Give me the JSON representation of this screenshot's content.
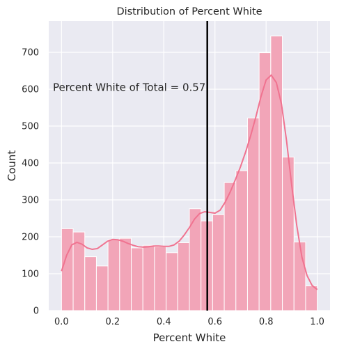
{
  "chart_data": {
    "type": "bar",
    "title": "Distribution of Percent White",
    "xlabel": "Percent White",
    "ylabel": "Count",
    "xlim": [
      -0.05,
      1.05
    ],
    "ylim": [
      0,
      785
    ],
    "xticks": [
      "0.0",
      "0.2",
      "0.4",
      "0.6",
      "0.8",
      "1.0"
    ],
    "yticks": [
      "0",
      "100",
      "200",
      "300",
      "400",
      "500",
      "600",
      "700"
    ],
    "grid": true,
    "bin_width": 0.05,
    "bins": [
      {
        "start": 0.0,
        "count": 222
      },
      {
        "start": 0.05,
        "count": 213
      },
      {
        "start": 0.1,
        "count": 146
      },
      {
        "start": 0.15,
        "count": 121
      },
      {
        "start": 0.2,
        "count": 193
      },
      {
        "start": 0.25,
        "count": 196
      },
      {
        "start": 0.3,
        "count": 170
      },
      {
        "start": 0.35,
        "count": 177
      },
      {
        "start": 0.4,
        "count": 173
      },
      {
        "start": 0.45,
        "count": 157
      },
      {
        "start": 0.5,
        "count": 184
      },
      {
        "start": 0.55,
        "count": 276
      },
      {
        "start": 0.6,
        "count": 243
      },
      {
        "start": 0.65,
        "count": 260
      },
      {
        "start": 0.7,
        "count": 347
      },
      {
        "start": 0.75,
        "count": 379
      },
      {
        "start": 0.8,
        "count": 522
      },
      {
        "start": 0.85,
        "count": 699
      },
      {
        "start": 0.9,
        "count": 744
      },
      {
        "start": 0.95,
        "count": 416
      },
      {
        "start": 1.0,
        "count": 186
      },
      {
        "start": 1.05,
        "count": 67
      }
    ],
    "kde": {
      "x": [
        0.0,
        0.02,
        0.04,
        0.06,
        0.08,
        0.1,
        0.12,
        0.14,
        0.16,
        0.18,
        0.2,
        0.22,
        0.24,
        0.26,
        0.28,
        0.3,
        0.32,
        0.34,
        0.36,
        0.38,
        0.4,
        0.42,
        0.44,
        0.46,
        0.48,
        0.5,
        0.52,
        0.54,
        0.56,
        0.58,
        0.6,
        0.62,
        0.64,
        0.66,
        0.68,
        0.7,
        0.72,
        0.74,
        0.76,
        0.78,
        0.8,
        0.82,
        0.84,
        0.86,
        0.88,
        0.9,
        0.92,
        0.94,
        0.96,
        0.98,
        1.0
      ],
      "y": [
        107,
        150,
        178,
        185,
        180,
        170,
        166,
        168,
        178,
        188,
        193,
        192,
        188,
        182,
        177,
        173,
        172,
        173,
        175,
        175,
        174,
        174,
        178,
        188,
        205,
        225,
        248,
        263,
        268,
        266,
        264,
        272,
        294,
        322,
        355,
        390,
        430,
        475,
        525,
        580,
        625,
        638,
        618,
        560,
        460,
        340,
        230,
        145,
        95,
        68,
        57
      ]
    },
    "color": "#f2a5b8",
    "line_color": "#f07390",
    "vline": {
      "x": 0.57,
      "color": "#000000"
    },
    "annotation": "Percent White of Total = 0.57"
  }
}
